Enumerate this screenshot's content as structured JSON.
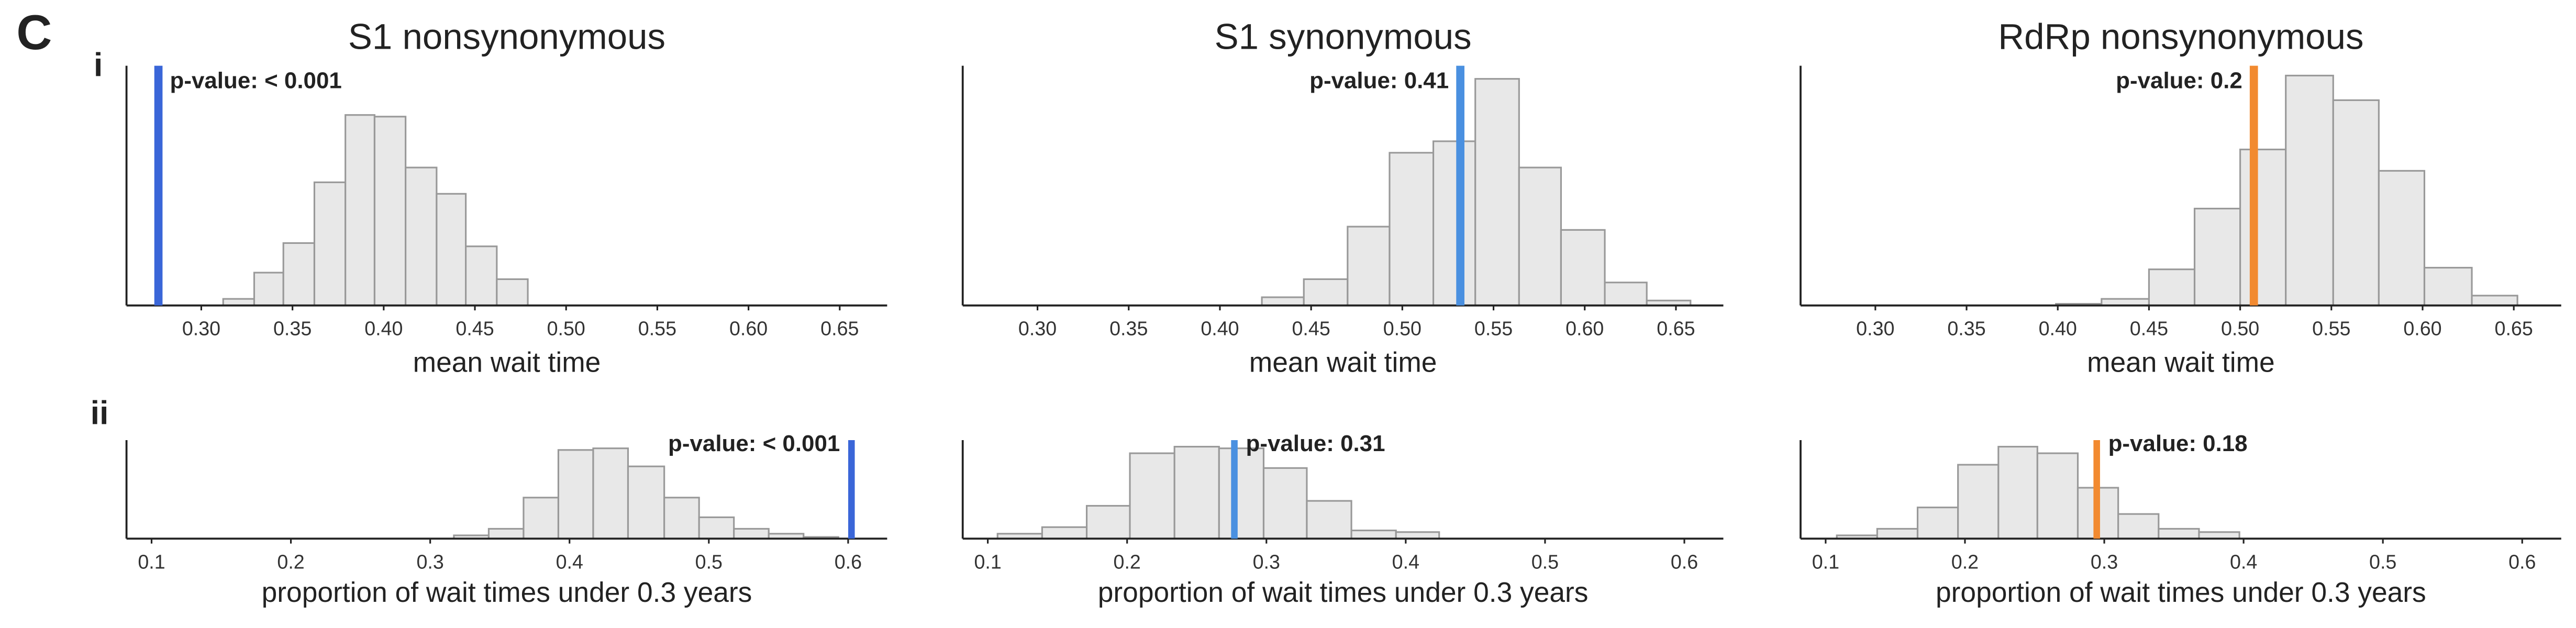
{
  "figure": {
    "label": "C",
    "rows": [
      "i",
      "ii"
    ]
  },
  "chart_data": [
    {
      "type": "histogram",
      "title": "S1 nonsynonymous",
      "xlabel": "mean wait time",
      "bins": [
        0.312,
        0.329,
        0.345,
        0.362,
        0.379,
        0.395,
        0.412,
        0.429,
        0.445,
        0.462,
        0.479
      ],
      "values": [
        4,
        20,
        38,
        75,
        116,
        115,
        84,
        68,
        36,
        16
      ],
      "color": "#e8e8e8",
      "xlim": [
        0.259,
        0.676
      ],
      "ylim": [
        0,
        146
      ],
      "xticks": [
        {
          "value": 0.3,
          "label": "0.30"
        },
        0.35,
        {
          "value": 0.4,
          "label": "0.40"
        },
        0.45,
        {
          "value": 0.5,
          "label": "0.50"
        },
        0.55,
        {
          "value": 0.6,
          "label": "0.60"
        },
        0.65
      ],
      "vline": {
        "value": 0.2765,
        "color": "#3a66d8",
        "label": "p-value: < 0.001"
      }
    },
    {
      "type": "histogram",
      "title": "S1 synonymous",
      "xlabel": "mean wait time",
      "bins": [
        0.423,
        0.446,
        0.47,
        0.493,
        0.517,
        0.54,
        0.564,
        0.587,
        0.611,
        0.634,
        0.658
      ],
      "values": [
        5,
        16,
        48,
        93,
        100,
        138,
        84,
        46,
        14,
        3
      ],
      "color": "#e8e8e8",
      "xlim": [
        0.259,
        0.676
      ],
      "ylim": [
        0,
        146
      ],
      "xticks": [
        {
          "value": 0.3,
          "label": "0.30"
        },
        0.35,
        {
          "value": 0.4,
          "label": "0.40"
        },
        0.45,
        {
          "value": 0.5,
          "label": "0.50"
        },
        0.55,
        {
          "value": 0.6,
          "label": "0.60"
        },
        0.65
      ],
      "vline": {
        "value": 0.5318,
        "color": "#4a90e0",
        "label": "p-value: 0.41"
      }
    },
    {
      "type": "histogram",
      "title": "RdRp nonsynonymous",
      "xlabel": "mean wait time",
      "bins": [
        0.399,
        0.424,
        0.45,
        0.475,
        0.5,
        0.525,
        0.551,
        0.576,
        0.601,
        0.627,
        0.652
      ],
      "values": [
        1,
        4,
        22,
        59,
        95,
        140,
        125,
        82,
        23,
        6
      ],
      "color": "#e8e8e8",
      "xlim": [
        0.259,
        0.676
      ],
      "ylim": [
        0,
        146
      ],
      "xticks": [
        {
          "value": 0.3,
          "label": "0.30"
        },
        0.35,
        {
          "value": 0.4,
          "label": "0.40"
        },
        0.45,
        {
          "value": 0.5,
          "label": "0.50"
        },
        0.55,
        {
          "value": 0.6,
          "label": "0.60"
        },
        0.65
      ],
      "vline": {
        "value": 0.5075,
        "color": "#f28a30",
        "label": "p-value: 0.2"
      }
    },
    {
      "type": "histogram",
      "xlabel": "proportion of wait times under 0.3 years",
      "bins": [
        0.317,
        0.342,
        0.367,
        0.392,
        0.417,
        0.442,
        0.468,
        0.493,
        0.518,
        0.543,
        0.568,
        0.593
      ],
      "values": [
        2,
        6,
        25,
        54,
        55,
        44,
        25,
        13,
        6,
        3,
        1
      ],
      "color": "#e8e8e8",
      "xlim": [
        0.082,
        0.628
      ],
      "ylim": [
        0,
        60
      ],
      "xticks": [
        0.1,
        0.2,
        0.3,
        0.4,
        0.5,
        0.6
      ],
      "vline": {
        "value": 0.6024,
        "color": "#3a66d8",
        "label": "p-value: < 0.001"
      }
    },
    {
      "type": "histogram",
      "xlabel": "proportion of wait times under 0.3 years",
      "bins": [
        0.107,
        0.139,
        0.171,
        0.202,
        0.234,
        0.266,
        0.298,
        0.329,
        0.361,
        0.393,
        0.424
      ],
      "values": [
        3,
        7,
        20,
        52,
        56,
        55,
        43,
        23,
        5,
        4
      ],
      "color": "#e8e8e8",
      "xlim": [
        0.082,
        0.628
      ],
      "ylim": [
        0,
        60
      ],
      "xticks": [
        0.1,
        0.2,
        0.3,
        0.4,
        0.5,
        0.6
      ],
      "vline": {
        "value": 0.277,
        "color": "#4a90e0",
        "label": "p-value: 0.31"
      }
    },
    {
      "type": "histogram",
      "xlabel": "proportion of wait times under 0.3 years",
      "bins": [
        0.108,
        0.137,
        0.166,
        0.195,
        0.224,
        0.252,
        0.281,
        0.31,
        0.339,
        0.368,
        0.397
      ],
      "values": [
        2,
        6,
        19,
        45,
        56,
        52,
        31,
        15,
        6,
        4
      ],
      "color": "#e8e8e8",
      "xlim": [
        0.082,
        0.628
      ],
      "ylim": [
        0,
        60
      ],
      "xticks": [
        0.1,
        0.2,
        0.3,
        0.4,
        0.5,
        0.6
      ],
      "vline": {
        "value": 0.2946,
        "color": "#f28a30",
        "label": "p-value: 0.18"
      }
    }
  ]
}
